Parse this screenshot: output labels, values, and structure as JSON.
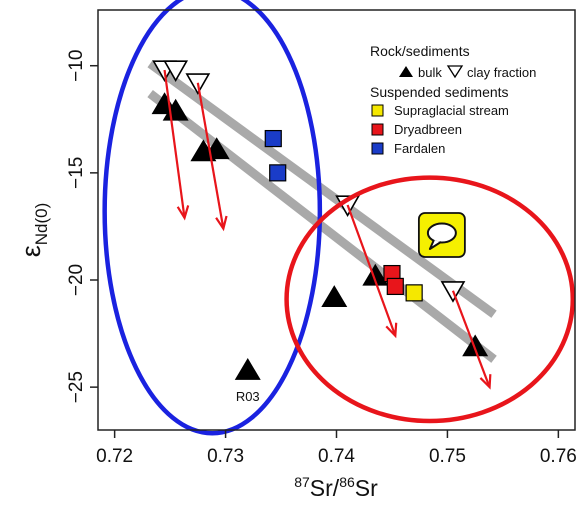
{
  "chart_data": {
    "type": "scatter",
    "xlabel": {
      "sup1": "87",
      "base1": "Sr/",
      "sup2": "86",
      "base2": "Sr"
    },
    "ylabel": {
      "base": "ε",
      "sub": "Nd(0)"
    },
    "xlim": [
      0.7185,
      0.7615
    ],
    "ylim": [
      -27,
      -7.4
    ],
    "x_ticks": [
      0.72,
      0.73,
      0.74,
      0.75,
      0.76
    ],
    "x_tick_labels": [
      "0.72",
      "0.73",
      "0.74",
      "0.75",
      "0.76"
    ],
    "y_ticks": [
      -10,
      -15,
      -20,
      -25
    ],
    "y_tick_labels": [
      "−10",
      "−15",
      "−20",
      "−25"
    ],
    "grid": false,
    "legend": {
      "placement": "top-right",
      "group1_title": "Rock/sediments",
      "bulk_label": "bulk",
      "clay_label": "clay fraction",
      "group2_title": "Suspended sediments",
      "items": [
        {
          "name": "Supraglacial stream",
          "color": "#f5e800"
        },
        {
          "name": "Dryadbreen",
          "color": "#e8151b"
        },
        {
          "name": "Fardalen",
          "color": "#1a3cc8"
        }
      ]
    },
    "series": [
      {
        "name": "bulk",
        "marker": "filled-triangle",
        "color": "#000000",
        "points": [
          {
            "x": 0.7245,
            "y": -11.8
          },
          {
            "x": 0.7255,
            "y": -12.1
          },
          {
            "x": 0.728,
            "y": -14.0
          },
          {
            "x": 0.7292,
            "y": -13.9
          },
          {
            "x": 0.732,
            "y": -24.2,
            "label": "R03"
          },
          {
            "x": 0.7398,
            "y": -20.8
          },
          {
            "x": 0.7435,
            "y": -19.8
          },
          {
            "x": 0.7525,
            "y": -23.1
          }
        ]
      },
      {
        "name": "clay fraction",
        "marker": "open-triangle",
        "color": "#000000",
        "points": [
          {
            "x": 0.7245,
            "y": -10.2
          },
          {
            "x": 0.7255,
            "y": -10.2
          },
          {
            "x": 0.7275,
            "y": -10.8
          },
          {
            "x": 0.741,
            "y": -16.5
          },
          {
            "x": 0.7505,
            "y": -20.5
          }
        ]
      },
      {
        "name": "Supraglacial stream",
        "marker": "square",
        "color": "#f5e800",
        "points": [
          {
            "x": 0.747,
            "y": -20.6
          }
        ]
      },
      {
        "name": "Dryadbreen",
        "marker": "square",
        "color": "#e8151b",
        "points": [
          {
            "x": 0.745,
            "y": -19.7
          },
          {
            "x": 0.7453,
            "y": -20.3
          }
        ]
      },
      {
        "name": "Fardalen",
        "marker": "square",
        "color": "#1a3cc8",
        "points": [
          {
            "x": 0.7343,
            "y": -13.4
          },
          {
            "x": 0.7347,
            "y": -15.0
          }
        ]
      }
    ],
    "trend_lines": [
      {
        "color": "#a9a9a9",
        "x": [
          0.7232,
          0.7542
        ],
        "y": [
          -9.9,
          -21.6
        ]
      },
      {
        "color": "#a9a9a9",
        "x": [
          0.7232,
          0.7542
        ],
        "y": [
          -11.3,
          -23.7
        ]
      }
    ],
    "arrows": [
      {
        "color": "#e8151b",
        "from": [
          0.7245,
          -10.2
        ],
        "to": [
          0.7263,
          -17.1
        ]
      },
      {
        "color": "#e8151b",
        "from": [
          0.7275,
          -10.8
        ],
        "to": [
          0.7298,
          -17.6
        ]
      },
      {
        "color": "#e8151b",
        "from": [
          0.741,
          -16.5
        ],
        "to": [
          0.7453,
          -22.6
        ]
      },
      {
        "color": "#e8151b",
        "from": [
          0.7505,
          -20.5
        ],
        "to": [
          0.7538,
          -25.0
        ]
      }
    ],
    "ellipses": [
      {
        "color": "#1a22e0",
        "cx": 0.7288,
        "cy": -16.8,
        "rx": 0.0097,
        "ry": 10.35
      },
      {
        "color": "#e8151b",
        "cx": 0.7484,
        "cy": -20.9,
        "rx": 0.0129,
        "ry": 5.68
      }
    ],
    "annotation_icon": {
      "name": "speech-bubble-icon",
      "fill": "#f5f000",
      "x": 0.7495,
      "y": -17.9
    }
  }
}
